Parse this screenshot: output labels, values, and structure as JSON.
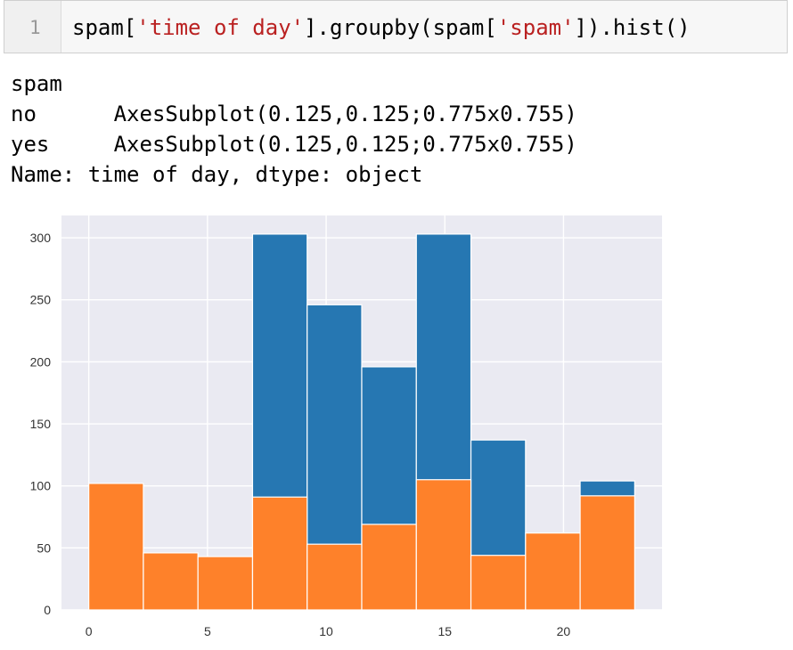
{
  "cell": {
    "line_number": "1",
    "code_prefix": "spam[",
    "code_str1": "'time of day'",
    "code_mid": "].groupby(spam[",
    "code_str2": "'spam'",
    "code_suffix": "]).hist()"
  },
  "output": {
    "line1": "spam",
    "line2": "no      AxesSubplot(0.125,0.125;0.775x0.755)",
    "line3": "yes     AxesSubplot(0.125,0.125;0.775x0.755)",
    "line4": "Name: time of day, dtype: object"
  },
  "chart_data": {
    "type": "bar",
    "x_range": [
      -1.15,
      24.15
    ],
    "ylim": [
      0,
      318
    ],
    "xticks": [
      0,
      5,
      10,
      15,
      20
    ],
    "yticks": [
      0,
      50,
      100,
      150,
      200,
      250,
      300
    ],
    "bin_edges": [
      0,
      2.3,
      4.6,
      6.9,
      9.2,
      11.5,
      13.8,
      16.1,
      18.4,
      20.7,
      23
    ],
    "series": [
      {
        "values": [
          0,
          0,
          0,
          303,
          246,
          196,
          303,
          137,
          0,
          104
        ],
        "color": "#2677b2"
      },
      {
        "values": [
          102,
          46,
          43,
          91,
          53,
          69,
          105,
          44,
          62,
          92
        ],
        "color": "#fe812a"
      }
    ],
    "background_color": "#eaeaf2",
    "grid": true
  }
}
